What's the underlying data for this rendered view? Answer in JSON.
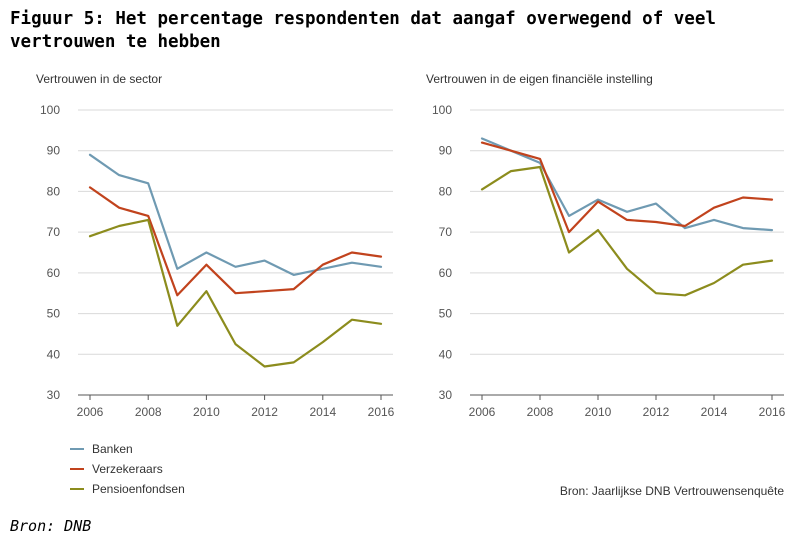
{
  "figure": {
    "title": "Figuur 5: Het percentage respondenten dat aangaf overwegend of veel vertrouwen te hebben",
    "chart_source": "Bron: Jaarlijkse DNB Vertrouwensenquête",
    "figure_source": "Bron: DNB"
  },
  "colors": {
    "Banken": "#6f9ab2",
    "Verzekeraars": "#c1431d",
    "Pensioenfondsen": "#8c8c1d"
  },
  "legend": [
    "Banken",
    "Verzekeraars",
    "Pensioenfondsen"
  ],
  "chart_data": [
    {
      "type": "line",
      "title": "Vertrouwen in de sector",
      "xlabel": "",
      "ylabel": "",
      "xlim": [
        2006,
        2016
      ],
      "ylim": [
        30,
        100
      ],
      "xticks": [
        2006,
        2008,
        2010,
        2012,
        2014,
        2016
      ],
      "yticks": [
        30,
        40,
        50,
        60,
        70,
        80,
        90,
        100
      ],
      "grid": true,
      "series": [
        {
          "name": "Banken",
          "x": [
            2006,
            2007,
            2008,
            2009,
            2010,
            2011,
            2012,
            2013,
            2014,
            2015,
            2016
          ],
          "values": [
            89,
            84,
            82,
            61,
            65,
            61.5,
            63,
            59.5,
            61,
            62.5,
            61.5
          ]
        },
        {
          "name": "Verzekeraars",
          "x": [
            2006,
            2007,
            2008,
            2009,
            2010,
            2011,
            2012,
            2013,
            2014,
            2015,
            2016
          ],
          "values": [
            81,
            76,
            74,
            54.5,
            62,
            55,
            55.5,
            56,
            62,
            65,
            64
          ]
        },
        {
          "name": "Pensioenfondsen",
          "x": [
            2006,
            2007,
            2008,
            2009,
            2010,
            2011,
            2012,
            2013,
            2014,
            2015,
            2016
          ],
          "values": [
            69,
            71.5,
            73,
            47,
            55.5,
            42.5,
            37,
            38,
            43,
            48.5,
            47.5
          ]
        }
      ]
    },
    {
      "type": "line",
      "title": "Vertrouwen in de eigen financiële instelling",
      "xlabel": "",
      "ylabel": "",
      "xlim": [
        2006,
        2016
      ],
      "ylim": [
        30,
        100
      ],
      "xticks": [
        2006,
        2008,
        2010,
        2012,
        2014,
        2016
      ],
      "yticks": [
        30,
        40,
        50,
        60,
        70,
        80,
        90,
        100
      ],
      "grid": true,
      "series": [
        {
          "name": "Banken",
          "x": [
            2006,
            2007,
            2008,
            2009,
            2010,
            2011,
            2012,
            2013,
            2014,
            2015,
            2016
          ],
          "values": [
            93,
            90,
            87,
            74,
            78,
            75,
            77,
            71,
            73,
            71,
            70.5
          ]
        },
        {
          "name": "Verzekeraars",
          "x": [
            2006,
            2007,
            2008,
            2009,
            2010,
            2011,
            2012,
            2013,
            2014,
            2015,
            2016
          ],
          "values": [
            92,
            90,
            88,
            70,
            77.5,
            73,
            72.5,
            71.5,
            76,
            78.5,
            78
          ]
        },
        {
          "name": "Pensioenfondsen",
          "x": [
            2006,
            2007,
            2008,
            2009,
            2010,
            2011,
            2012,
            2013,
            2014,
            2015,
            2016
          ],
          "values": [
            80.5,
            85,
            86,
            65,
            70.5,
            61,
            55,
            54.5,
            57.5,
            62,
            63
          ]
        }
      ]
    }
  ]
}
